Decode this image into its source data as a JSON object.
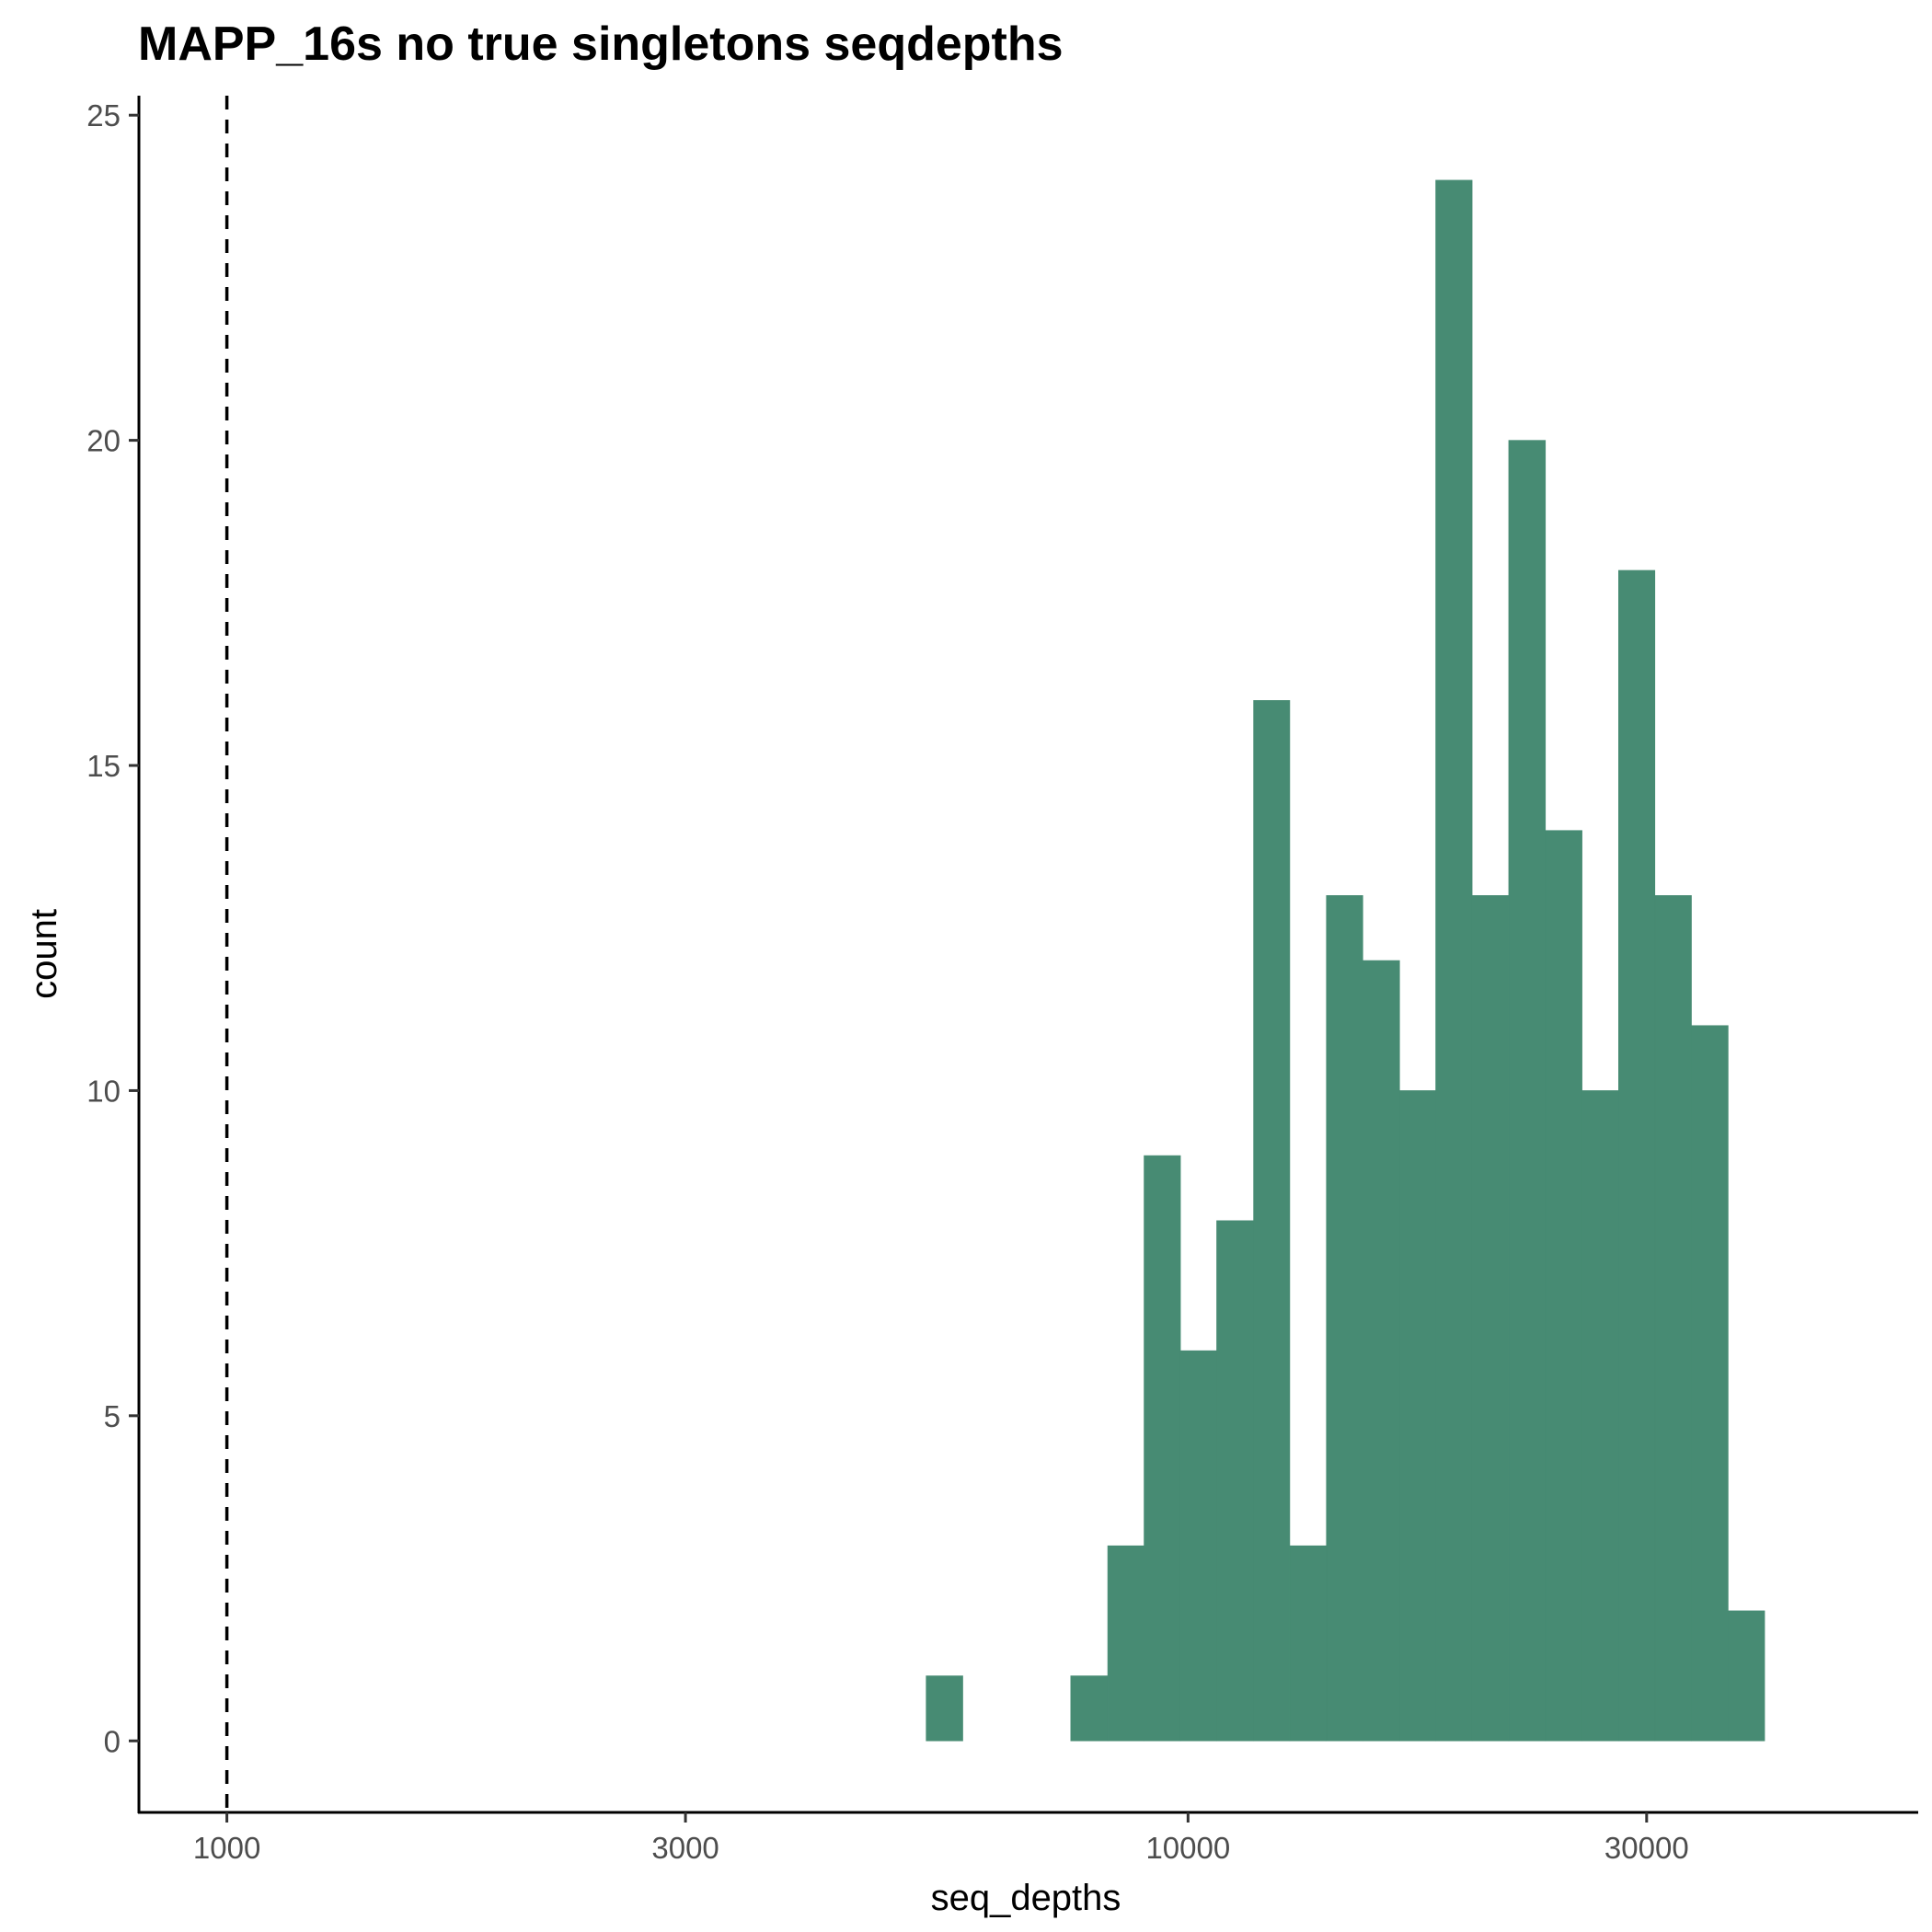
{
  "chart_data": {
    "type": "bar",
    "title": "MAPP_16s no true singletons seqdepths",
    "xlabel": "seq_depths",
    "ylabel": "count",
    "x_scale": "log10",
    "xlim": [
      810,
      57500
    ],
    "ylim": [
      -1.1,
      25.3
    ],
    "x_ticks": [
      1000,
      3000,
      10000,
      30000
    ],
    "x_tick_labels": [
      "1000",
      "3000",
      "10000",
      "30000"
    ],
    "y_ticks": [
      0,
      5,
      10,
      15,
      20,
      25
    ],
    "y_tick_labels": [
      "0",
      "5",
      "10",
      "15",
      "20",
      "25"
    ],
    "bins": [
      {
        "x_start": 5340,
        "x_end": 5830,
        "count": 1
      },
      {
        "x_start": 7550,
        "x_end": 8250,
        "count": 1
      },
      {
        "x_start": 8250,
        "x_end": 9000,
        "count": 3
      },
      {
        "x_start": 9000,
        "x_end": 9820,
        "count": 9
      },
      {
        "x_start": 9820,
        "x_end": 10710,
        "count": 6
      },
      {
        "x_start": 10710,
        "x_end": 11700,
        "count": 8
      },
      {
        "x_start": 11700,
        "x_end": 12760,
        "count": 16
      },
      {
        "x_start": 12760,
        "x_end": 13930,
        "count": 3
      },
      {
        "x_start": 13930,
        "x_end": 15200,
        "count": 13
      },
      {
        "x_start": 15200,
        "x_end": 16600,
        "count": 12
      },
      {
        "x_start": 16600,
        "x_end": 18100,
        "count": 10
      },
      {
        "x_start": 18100,
        "x_end": 19750,
        "count": 24
      },
      {
        "x_start": 19750,
        "x_end": 21560,
        "count": 13
      },
      {
        "x_start": 21560,
        "x_end": 23540,
        "count": 20
      },
      {
        "x_start": 23540,
        "x_end": 25700,
        "count": 14
      },
      {
        "x_start": 25700,
        "x_end": 28050,
        "count": 10
      },
      {
        "x_start": 28050,
        "x_end": 30600,
        "count": 18
      },
      {
        "x_start": 30600,
        "x_end": 33400,
        "count": 13
      },
      {
        "x_start": 33400,
        "x_end": 36470,
        "count": 11
      },
      {
        "x_start": 36470,
        "x_end": 39800,
        "count": 2
      }
    ],
    "vline": {
      "x": 1000,
      "style": "dashed",
      "color": "#000000"
    },
    "bar_color": "#478b73",
    "grid": false,
    "legend": "none"
  }
}
